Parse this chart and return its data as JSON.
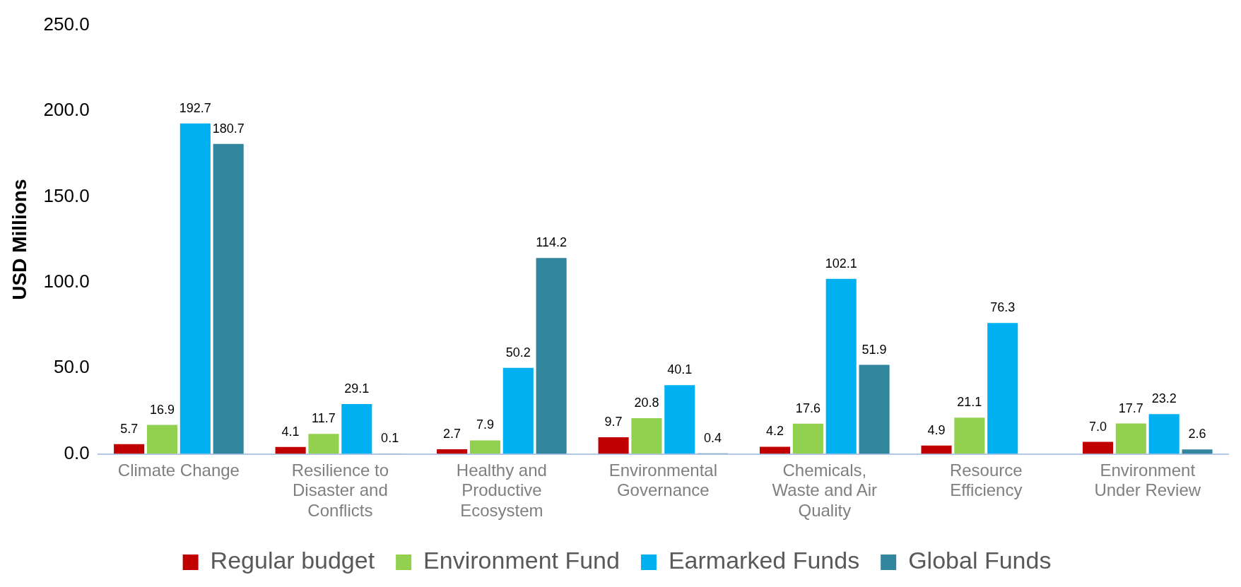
{
  "chart_data": {
    "type": "bar",
    "ylabel": "USD Millions",
    "categories": [
      "Climate Change",
      "Resilience to Disaster and Conflicts",
      "Healthy and Productive Ecosystem",
      "Environmental Governance",
      "Chemicals, Waste and Air Quality",
      "Resource Efficiency",
      "Environment Under Review"
    ],
    "series": [
      {
        "name": "Regular budget",
        "color": "#c00000",
        "values": [
          5.7,
          4.1,
          2.7,
          9.7,
          4.2,
          4.9,
          7.0
        ],
        "value_labels": [
          "5.7",
          "4.1",
          "2.7",
          "9.7",
          "4.2",
          "4.9",
          "7.0"
        ]
      },
      {
        "name": "Environment Fund",
        "color": "#92d050",
        "values": [
          16.9,
          11.7,
          7.9,
          20.8,
          17.6,
          21.1,
          17.7
        ],
        "value_labels": [
          "16.9",
          "11.7",
          "7.9",
          "20.8",
          "17.6",
          "21.1",
          "17.7"
        ]
      },
      {
        "name": "Earmarked Funds",
        "color": "#00b0f0",
        "values": [
          192.7,
          29.1,
          50.2,
          40.1,
          102.1,
          76.3,
          23.2
        ],
        "value_labels": [
          "192.7",
          "29.1",
          "50.2",
          "40.1",
          "102.1",
          "76.3",
          "23.2"
        ]
      },
      {
        "name": "Global Funds",
        "color": "#31859c",
        "values": [
          180.7,
          0.1,
          114.2,
          0.4,
          51.9,
          null,
          2.6
        ],
        "value_labels": [
          "180.7",
          "0.1",
          "114.2",
          "0.4",
          "51.9",
          null,
          "2.6"
        ]
      }
    ],
    "ylim": [
      0,
      250
    ],
    "yticks": [
      {
        "value": 0,
        "label": "0.0"
      },
      {
        "value": 50,
        "label": "50.0"
      },
      {
        "value": 100,
        "label": "100.0"
      },
      {
        "value": 150,
        "label": "150.0"
      },
      {
        "value": 200,
        "label": "200.0"
      },
      {
        "value": 250,
        "label": "250.0"
      }
    ],
    "grid": false,
    "legend": "bottom"
  }
}
